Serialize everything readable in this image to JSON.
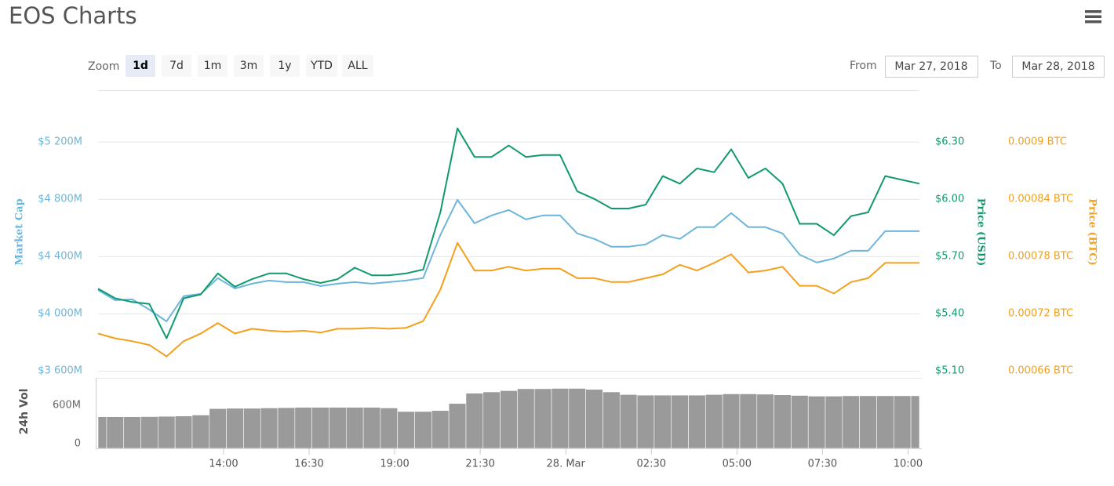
{
  "header": {
    "title": "EOS Charts"
  },
  "zoom": {
    "label": "Zoom",
    "options": [
      "1d",
      "7d",
      "1m",
      "3m",
      "1y",
      "YTD",
      "ALL"
    ],
    "selected": 0
  },
  "range": {
    "from_label": "From",
    "from": "Mar 27, 2018",
    "to_label": "To",
    "to": "Mar 28, 2018"
  },
  "chart_data": [
    {
      "type": "line",
      "x": [
        "2018-03-27T10:20",
        "2018-03-27T10:50",
        "2018-03-27T11:20",
        "2018-03-27T11:50",
        "2018-03-27T12:20",
        "2018-03-27T12:50",
        "2018-03-27T13:20",
        "2018-03-27T13:50",
        "2018-03-27T14:20",
        "2018-03-27T14:50",
        "2018-03-27T15:20",
        "2018-03-27T15:50",
        "2018-03-27T16:20",
        "2018-03-27T16:50",
        "2018-03-27T17:20",
        "2018-03-27T17:50",
        "2018-03-27T18:20",
        "2018-03-27T18:50",
        "2018-03-27T19:20",
        "2018-03-27T19:50",
        "2018-03-27T20:20",
        "2018-03-27T20:50",
        "2018-03-27T21:20",
        "2018-03-27T21:50",
        "2018-03-27T22:20",
        "2018-03-27T22:50",
        "2018-03-27T23:20",
        "2018-03-27T23:50",
        "2018-03-28T00:20",
        "2018-03-28T00:50",
        "2018-03-28T01:20",
        "2018-03-28T01:50",
        "2018-03-28T02:20",
        "2018-03-28T02:50",
        "2018-03-28T03:20",
        "2018-03-28T03:50",
        "2018-03-28T04:20",
        "2018-03-28T04:50",
        "2018-03-28T05:20",
        "2018-03-28T05:50",
        "2018-03-28T06:20",
        "2018-03-28T06:50",
        "2018-03-28T07:20",
        "2018-03-28T07:50",
        "2018-03-28T08:20",
        "2018-03-28T08:50",
        "2018-03-28T09:20",
        "2018-03-28T09:50",
        "2018-03-28T10:20"
      ],
      "xlim": [
        "2018-03-27T10:20",
        "2018-03-28T10:20"
      ],
      "ylim": [
        3600,
        5560
      ],
      "yticks": [
        {
          "value": 3600,
          "label": "$3 600M"
        },
        {
          "value": 4000,
          "label": "$4 000M"
        },
        {
          "value": 4400,
          "label": "$4 400M"
        },
        {
          "value": 4800,
          "label": "$4 800M"
        },
        {
          "value": 5200,
          "label": "$5 200M"
        }
      ],
      "y2lim": [
        5.1,
        6.57
      ],
      "y2ticks": [
        {
          "value": 5.1,
          "label": "$5.10"
        },
        {
          "value": 5.4,
          "label": "$5.40"
        },
        {
          "value": 5.7,
          "label": "$5.70"
        },
        {
          "value": 6.0,
          "label": "$6.00"
        },
        {
          "value": 6.3,
          "label": "$6.30"
        }
      ],
      "y3lim": [
        0.00066,
        0.000954
      ],
      "y3ticks": [
        {
          "value": 0.00066,
          "label": "0.00066 BTC"
        },
        {
          "value": 0.00072,
          "label": "0.00072 BTC"
        },
        {
          "value": 0.00078,
          "label": "0.00078 BTC"
        },
        {
          "value": 0.00084,
          "label": "0.00084 BTC"
        },
        {
          "value": 0.0009,
          "label": "0.0009 BTC"
        }
      ],
      "grid": true,
      "series": [
        {
          "name": "Market Cap",
          "color": "#6cb6db",
          "axis": "y",
          "values": [
            4164,
            4093,
            4099,
            4027,
            3945,
            4121,
            4137,
            4247,
            4175,
            4208,
            4230,
            4219,
            4219,
            4192,
            4208,
            4219,
            4208,
            4219,
            4230,
            4247,
            4548,
            4794,
            4630,
            4685,
            4723,
            4657,
            4685,
            4685,
            4559,
            4521,
            4466,
            4466,
            4482,
            4548,
            4521,
            4603,
            4603,
            4701,
            4603,
            4603,
            4559,
            4411,
            4356,
            4384,
            4438,
            4438,
            4575,
            4575,
            4575
          ]
        },
        {
          "name": "Price (USD)",
          "color": "#109a6c",
          "axis": "y2",
          "values": [
            5.53,
            5.48,
            5.46,
            5.45,
            5.27,
            5.48,
            5.5,
            5.61,
            5.54,
            5.58,
            5.61,
            5.61,
            5.58,
            5.56,
            5.58,
            5.64,
            5.6,
            5.6,
            5.61,
            5.63,
            5.93,
            6.37,
            6.22,
            6.22,
            6.28,
            6.22,
            6.23,
            6.23,
            6.04,
            6.0,
            5.95,
            5.95,
            5.97,
            6.12,
            6.08,
            6.16,
            6.14,
            6.26,
            6.11,
            6.16,
            6.08,
            5.87,
            5.87,
            5.81,
            5.91,
            5.93,
            6.12,
            6.1,
            6.08
          ]
        },
        {
          "name": "Price (BTC)",
          "color": "#f3a01d",
          "axis": "y3",
          "values": [
            0.000699,
            0.000694,
            0.000691,
            0.000687,
            0.000675,
            0.000691,
            0.000699,
            0.00071,
            0.000699,
            0.000704,
            0.000702,
            0.000701,
            0.000702,
            0.0007,
            0.000704,
            0.000704,
            0.000705,
            0.000704,
            0.000705,
            0.000712,
            0.000745,
            0.000794,
            0.000765,
            0.000765,
            0.000769,
            0.000765,
            0.000767,
            0.000767,
            0.000757,
            0.000757,
            0.000753,
            0.000753,
            0.000757,
            0.000761,
            0.000771,
            0.000765,
            0.000773,
            0.000782,
            0.000763,
            0.000765,
            0.000769,
            0.000749,
            0.000749,
            0.000741,
            0.000753,
            0.000757,
            0.000773,
            0.000773,
            0.000773
          ]
        }
      ]
    },
    {
      "type": "bar",
      "ylabel": "24h Vol",
      "x": [
        "2018-03-27T10:20",
        "2018-03-27T10:50",
        "2018-03-27T11:20",
        "2018-03-27T11:50",
        "2018-03-27T12:20",
        "2018-03-27T12:50",
        "2018-03-27T13:20",
        "2018-03-27T13:50",
        "2018-03-27T14:20",
        "2018-03-27T14:50",
        "2018-03-27T15:20",
        "2018-03-27T15:50",
        "2018-03-27T16:20",
        "2018-03-27T16:50",
        "2018-03-27T17:20",
        "2018-03-27T17:50",
        "2018-03-27T18:20",
        "2018-03-27T18:50",
        "2018-03-27T19:20",
        "2018-03-27T19:50",
        "2018-03-27T20:20",
        "2018-03-27T20:50",
        "2018-03-27T21:20",
        "2018-03-27T21:50",
        "2018-03-27T22:20",
        "2018-03-27T22:50",
        "2018-03-27T23:20",
        "2018-03-27T23:50",
        "2018-03-28T00:20",
        "2018-03-28T00:50",
        "2018-03-28T01:20",
        "2018-03-28T01:50",
        "2018-03-28T02:20",
        "2018-03-28T02:50",
        "2018-03-28T03:20",
        "2018-03-28T03:50",
        "2018-03-28T04:20",
        "2018-03-28T04:50",
        "2018-03-28T05:20",
        "2018-03-28T05:50",
        "2018-03-28T06:20",
        "2018-03-28T06:50",
        "2018-03-28T07:20",
        "2018-03-28T07:50",
        "2018-03-28T08:20",
        "2018-03-28T08:50",
        "2018-03-28T09:20",
        "2018-03-28T09:50",
        "2018-03-28T10:20"
      ],
      "xlim": [
        "2018-03-27T10:20",
        "2018-03-28T10:20"
      ],
      "xticks": [
        {
          "value": "2018-03-27T14:00",
          "label": "14:00"
        },
        {
          "value": "2018-03-27T16:30",
          "label": "16:30"
        },
        {
          "value": "2018-03-27T19:00",
          "label": "19:00"
        },
        {
          "value": "2018-03-27T21:30",
          "label": "21:30"
        },
        {
          "value": "2018-03-28T00:00",
          "label": "28. Mar"
        },
        {
          "value": "2018-03-28T02:30",
          "label": "02:30"
        },
        {
          "value": "2018-03-28T05:00",
          "label": "05:00"
        },
        {
          "value": "2018-03-28T07:30",
          "label": "07:30"
        },
        {
          "value": "2018-03-28T10:00",
          "label": "10:00"
        }
      ],
      "ylim": [
        0,
        1100
      ],
      "yticks": [
        0,
        {
          "value": 600,
          "label": "600M"
        }
      ],
      "color": "#9a9a9a",
      "values": [
        493,
        493,
        493,
        495,
        500,
        505,
        520,
        620,
        625,
        625,
        630,
        635,
        640,
        640,
        640,
        640,
        640,
        630,
        575,
        575,
        590,
        700,
        860,
        880,
        900,
        930,
        930,
        935,
        935,
        920,
        880,
        840,
        830,
        830,
        830,
        830,
        840,
        850,
        850,
        845,
        835,
        825,
        815,
        815,
        820,
        820,
        820,
        820,
        820
      ]
    }
  ]
}
